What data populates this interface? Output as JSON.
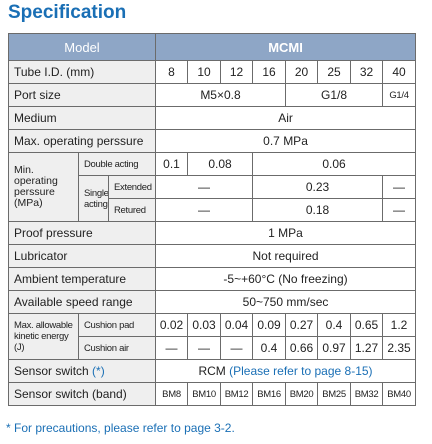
{
  "title": "Specification",
  "table": {
    "header": {
      "label": "Model",
      "model": "MCMI"
    },
    "tube_id": {
      "label": "Tube I.D. (mm)",
      "values": [
        8,
        10,
        12,
        16,
        20,
        25,
        32,
        40
      ]
    },
    "port_size": {
      "label": "Port size",
      "values": [
        "M5×0.8",
        "G1/8",
        "G1/4"
      ]
    },
    "medium": {
      "label": "Medium",
      "value": "Air"
    },
    "max_pressure": {
      "label": "Max. operating perssure",
      "value": "0.7 MPa"
    },
    "min_pressure": {
      "label": "Min. operating perssure (MPa)",
      "double_acting": {
        "label": "Double acting",
        "values": [
          "0.1",
          "0.08",
          "0.06"
        ]
      },
      "single_acting": {
        "label": "Single acting",
        "extended": {
          "label": "Extended",
          "values": [
            "—",
            "0.23",
            "—"
          ]
        },
        "retracted": {
          "label": "Retured",
          "values": [
            "—",
            "0.18",
            "—"
          ]
        }
      }
    },
    "proof_pressure": {
      "label": "Proof pressure",
      "value": "1 MPa"
    },
    "lubricator": {
      "label": "Lubricator",
      "value": "Not required"
    },
    "ambient": {
      "label": "Ambient temperature",
      "value": "-5~+60°C (No freezing)"
    },
    "speed": {
      "label": "Available speed range",
      "value": "50~750 mm/sec"
    },
    "kinetic_energy": {
      "label": "Max. allowable kinetic energy (J)",
      "cushion_pad": {
        "label": "Cushion pad",
        "values": [
          "0.02",
          "0.03",
          "0.04",
          "0.09",
          "0.27",
          "0.4",
          "0.65",
          "1.2"
        ]
      },
      "cushion_air": {
        "label": "Cushion air",
        "values": [
          "—",
          "—",
          "—",
          "0.4",
          "0.66",
          "0.97",
          "1.27",
          "2.35"
        ]
      }
    },
    "sensor_switch": {
      "label": "Sensor switch",
      "label_note": "(*)",
      "value": "RCM",
      "value_note": "(Please refer to page 8-15)"
    },
    "sensor_band": {
      "label": "Sensor switch (band)",
      "values": [
        "BM8",
        "BM10",
        "BM12",
        "BM16",
        "BM20",
        "BM25",
        "BM32",
        "BM40"
      ]
    }
  },
  "footnote": "* For precautions, please refer to page 3-2."
}
